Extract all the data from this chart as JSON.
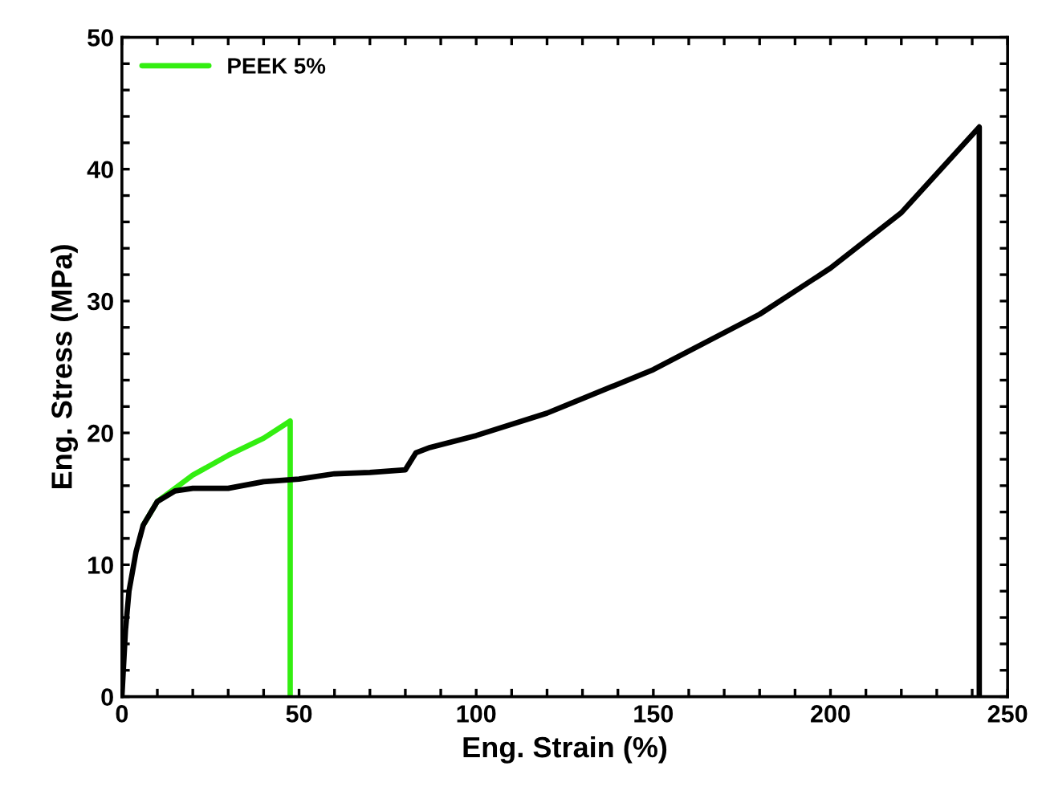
{
  "chart_data": {
    "type": "line",
    "xlabel": "Eng. Strain (%)",
    "ylabel": "Eng. Stress (MPa)",
    "xlim": [
      0,
      250
    ],
    "ylim": [
      0,
      50
    ],
    "xticks": [
      0,
      {
        "value": 10,
        "label": null
      },
      {
        "value": 20,
        "label": null
      },
      {
        "value": 30,
        "label": null
      },
      {
        "value": 40,
        "label": null
      },
      50,
      {
        "value": 60,
        "label": null
      },
      {
        "value": 70,
        "label": null
      },
      {
        "value": 80,
        "label": null
      },
      {
        "value": 90,
        "label": null
      },
      100,
      {
        "value": 110,
        "label": null
      },
      {
        "value": 120,
        "label": null
      },
      {
        "value": 130,
        "label": null
      },
      {
        "value": 140,
        "label": null
      },
      150,
      {
        "value": 160,
        "label": null
      },
      {
        "value": 170,
        "label": null
      },
      {
        "value": 180,
        "label": null
      },
      {
        "value": 190,
        "label": null
      },
      200,
      {
        "value": 210,
        "label": null
      },
      {
        "value": 220,
        "label": null
      },
      {
        "value": 230,
        "label": null
      },
      {
        "value": 240,
        "label": null
      },
      250
    ],
    "yticks": [
      0,
      {
        "value": 2,
        "label": null
      },
      {
        "value": 4,
        "label": null
      },
      {
        "value": 6,
        "label": null
      },
      {
        "value": 8,
        "label": null
      },
      10,
      {
        "value": 12,
        "label": null
      },
      {
        "value": 14,
        "label": null
      },
      {
        "value": 16,
        "label": null
      },
      {
        "value": 18,
        "label": null
      },
      20,
      {
        "value": 22,
        "label": null
      },
      {
        "value": 24,
        "label": null
      },
      {
        "value": 26,
        "label": null
      },
      {
        "value": 28,
        "label": null
      },
      30,
      {
        "value": 32,
        "label": null
      },
      {
        "value": 34,
        "label": null
      },
      {
        "value": 36,
        "label": null
      },
      {
        "value": 38,
        "label": null
      },
      40,
      {
        "value": 42,
        "label": null
      },
      {
        "value": 44,
        "label": null
      },
      {
        "value": 46,
        "label": null
      },
      {
        "value": 48,
        "label": null
      },
      50
    ],
    "grid": false,
    "legend": "top left",
    "marker": "none",
    "line_style": "solid",
    "series": [
      {
        "name": "PEEK 5%",
        "color": "#33ee11",
        "x": [
          6,
          10,
          15,
          20,
          30,
          40,
          47.5,
          47.5
        ],
        "values": [
          13,
          14.8,
          15.8,
          16.8,
          18.3,
          19.6,
          20.9,
          0
        ]
      },
      {
        "color": "#000000",
        "x": [
          0,
          1,
          2,
          4,
          6,
          10,
          15,
          20,
          30,
          40,
          50,
          60,
          70,
          80,
          83,
          87,
          100,
          120,
          150,
          180,
          200,
          220,
          242,
          242
        ],
        "values": [
          0,
          5,
          8,
          11,
          13,
          14.8,
          15.6,
          15.8,
          15.8,
          16.3,
          16.5,
          16.9,
          17,
          17.2,
          18.5,
          18.9,
          19.8,
          21.5,
          24.8,
          29,
          32.5,
          36.7,
          43.2,
          0
        ]
      }
    ]
  }
}
